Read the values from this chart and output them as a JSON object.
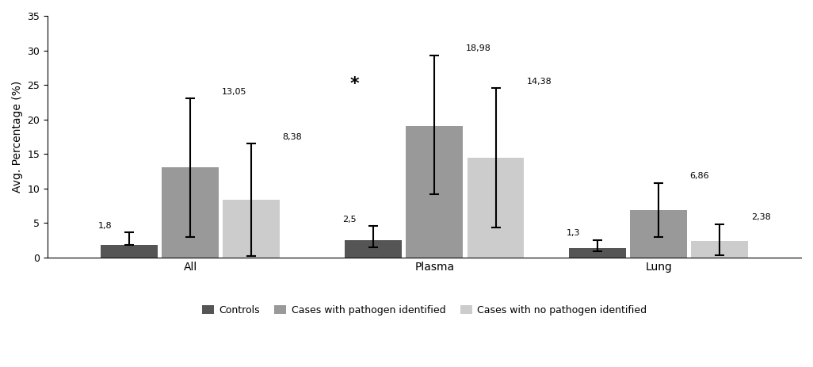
{
  "groups": [
    "All",
    "Plasma",
    "Lung"
  ],
  "categories": [
    "Controls",
    "Cases with pathogen identified",
    "Cases with no pathogen identified"
  ],
  "values": [
    [
      1.8,
      13.05,
      8.38
    ],
    [
      2.5,
      18.98,
      14.38
    ],
    [
      1.3,
      6.86,
      2.38
    ]
  ],
  "bar_colors": [
    "#555555",
    "#999999",
    "#cccccc"
  ],
  "ylabel": "Avg. Percentage (%)",
  "ylim": [
    0,
    35
  ],
  "yticks": [
    0,
    5,
    10,
    15,
    20,
    25,
    30,
    35
  ],
  "bar_width": 0.28,
  "background_color": "#ffffff",
  "value_labels": [
    [
      "1,8",
      "13,05",
      "8,38"
    ],
    [
      "2,5",
      "18,98",
      "14,38"
    ],
    [
      "1,3",
      "6,86",
      "2,38"
    ]
  ],
  "error_caps": [
    [
      [
        1.8,
        3.6
      ],
      [
        3.0,
        23.0
      ],
      [
        0.2,
        16.5
      ]
    ],
    [
      [
        1.5,
        4.5
      ],
      [
        9.2,
        29.3
      ],
      [
        4.3,
        24.5
      ]
    ],
    [
      [
        0.9,
        2.5
      ],
      [
        2.9,
        10.8
      ],
      [
        0.3,
        4.8
      ]
    ]
  ],
  "group_centers": [
    0.35,
    1.55,
    2.65
  ],
  "legend_labels": [
    "Controls",
    "Cases with pathogen identified",
    "Cases with no pathogen identified"
  ]
}
